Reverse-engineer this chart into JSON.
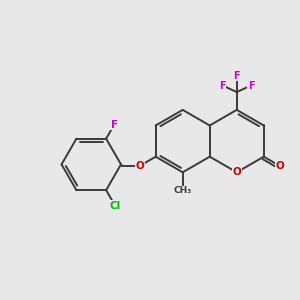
{
  "background_color": "#e8e8e8",
  "bond_color": "#3a3a3a",
  "bond_width": 1.4,
  "atom_colors": {
    "F": "#cc00cc",
    "Cl": "#00bb00",
    "O": "#cc0000",
    "C": "#3a3a3a"
  }
}
